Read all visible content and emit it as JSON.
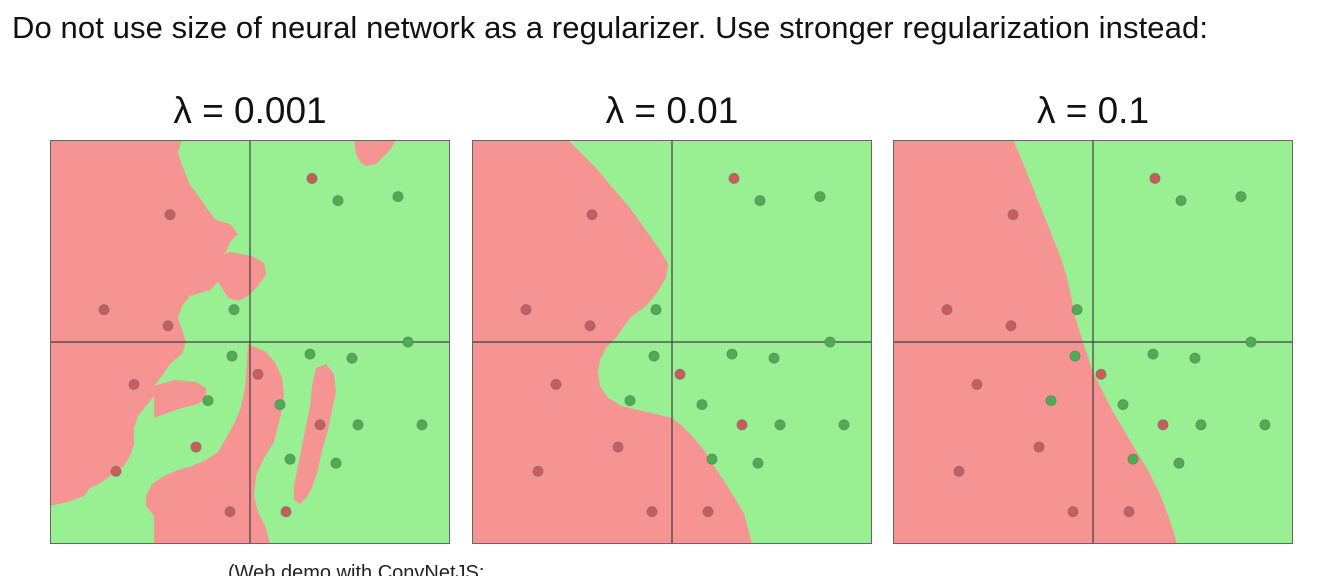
{
  "headline": "Do not use size of neural network as a regularizer. Use stronger regularization instead:",
  "footnote": "(Web demo with ConvNetJS:",
  "colors": {
    "red_region": "#f59493",
    "green_region": "#98f093",
    "red_point": "#cf5a5a",
    "green_point": "#49b14b",
    "axis": "#3f3f3f",
    "frame": "#666666"
  },
  "panels": [
    {
      "title": "λ = 0.001",
      "decision_boundary": "overfit",
      "points": [
        {
          "x": 0.31,
          "y": 0.81,
          "label": "red"
        },
        {
          "x": 0.44,
          "y": 0.7,
          "label": "green"
        },
        {
          "x": 0.74,
          "y": 0.72,
          "label": "green"
        },
        {
          "x": -0.73,
          "y": 0.16,
          "label": "red"
        },
        {
          "x": -0.41,
          "y": 0.08,
          "label": "red"
        },
        {
          "x": -0.08,
          "y": 0.16,
          "label": "green"
        },
        {
          "x": -0.58,
          "y": -0.21,
          "label": "red"
        },
        {
          "x": -0.09,
          "y": -0.07,
          "label": "green"
        },
        {
          "x": 0.04,
          "y": -0.16,
          "label": "red"
        },
        {
          "x": 0.3,
          "y": -0.06,
          "label": "green"
        },
        {
          "x": 0.51,
          "y": -0.08,
          "label": "green"
        },
        {
          "x": 0.79,
          "y": 0.0,
          "label": "green"
        },
        {
          "x": -0.21,
          "y": -0.29,
          "label": "green"
        },
        {
          "x": 0.15,
          "y": -0.31,
          "label": "green"
        },
        {
          "x": 0.35,
          "y": -0.41,
          "label": "red"
        },
        {
          "x": 0.54,
          "y": -0.41,
          "label": "green"
        },
        {
          "x": 0.86,
          "y": -0.41,
          "label": "green"
        },
        {
          "x": -0.27,
          "y": -0.52,
          "label": "red"
        },
        {
          "x": 0.2,
          "y": -0.58,
          "label": "green"
        },
        {
          "x": 0.43,
          "y": -0.6,
          "label": "green"
        },
        {
          "x": -0.67,
          "y": -0.64,
          "label": "red"
        },
        {
          "x": -0.1,
          "y": -0.84,
          "label": "red"
        },
        {
          "x": 0.18,
          "y": -0.84,
          "label": "red"
        },
        {
          "x": -0.4,
          "y": 0.63,
          "label": "red"
        }
      ]
    },
    {
      "title": "λ = 0.01",
      "decision_boundary": "moderate",
      "points": [
        {
          "x": 0.31,
          "y": 0.81,
          "label": "red"
        },
        {
          "x": 0.44,
          "y": 0.7,
          "label": "green"
        },
        {
          "x": 0.74,
          "y": 0.72,
          "label": "green"
        },
        {
          "x": -0.73,
          "y": 0.16,
          "label": "red"
        },
        {
          "x": -0.41,
          "y": 0.08,
          "label": "red"
        },
        {
          "x": -0.08,
          "y": 0.16,
          "label": "green"
        },
        {
          "x": -0.58,
          "y": -0.21,
          "label": "red"
        },
        {
          "x": -0.09,
          "y": -0.07,
          "label": "green"
        },
        {
          "x": 0.04,
          "y": -0.16,
          "label": "red"
        },
        {
          "x": 0.3,
          "y": -0.06,
          "label": "green"
        },
        {
          "x": 0.51,
          "y": -0.08,
          "label": "green"
        },
        {
          "x": 0.79,
          "y": 0.0,
          "label": "green"
        },
        {
          "x": -0.21,
          "y": -0.29,
          "label": "green"
        },
        {
          "x": 0.15,
          "y": -0.31,
          "label": "green"
        },
        {
          "x": 0.35,
          "y": -0.41,
          "label": "red"
        },
        {
          "x": 0.54,
          "y": -0.41,
          "label": "green"
        },
        {
          "x": 0.86,
          "y": -0.41,
          "label": "green"
        },
        {
          "x": -0.27,
          "y": -0.52,
          "label": "red"
        },
        {
          "x": 0.2,
          "y": -0.58,
          "label": "green"
        },
        {
          "x": 0.43,
          "y": -0.6,
          "label": "green"
        },
        {
          "x": -0.67,
          "y": -0.64,
          "label": "red"
        },
        {
          "x": -0.1,
          "y": -0.84,
          "label": "red"
        },
        {
          "x": 0.18,
          "y": -0.84,
          "label": "red"
        },
        {
          "x": -0.4,
          "y": 0.63,
          "label": "red"
        }
      ]
    },
    {
      "title": "λ = 0.1",
      "decision_boundary": "smooth",
      "points": [
        {
          "x": 0.31,
          "y": 0.81,
          "label": "red"
        },
        {
          "x": 0.44,
          "y": 0.7,
          "label": "green"
        },
        {
          "x": 0.74,
          "y": 0.72,
          "label": "green"
        },
        {
          "x": -0.73,
          "y": 0.16,
          "label": "red"
        },
        {
          "x": -0.41,
          "y": 0.08,
          "label": "red"
        },
        {
          "x": -0.08,
          "y": 0.16,
          "label": "green"
        },
        {
          "x": -0.58,
          "y": -0.21,
          "label": "red"
        },
        {
          "x": -0.09,
          "y": -0.07,
          "label": "green"
        },
        {
          "x": 0.04,
          "y": -0.16,
          "label": "red"
        },
        {
          "x": 0.3,
          "y": -0.06,
          "label": "green"
        },
        {
          "x": 0.51,
          "y": -0.08,
          "label": "green"
        },
        {
          "x": 0.79,
          "y": 0.0,
          "label": "green"
        },
        {
          "x": -0.21,
          "y": -0.29,
          "label": "green"
        },
        {
          "x": 0.15,
          "y": -0.31,
          "label": "green"
        },
        {
          "x": 0.35,
          "y": -0.41,
          "label": "red"
        },
        {
          "x": 0.54,
          "y": -0.41,
          "label": "green"
        },
        {
          "x": 0.86,
          "y": -0.41,
          "label": "green"
        },
        {
          "x": -0.27,
          "y": -0.52,
          "label": "red"
        },
        {
          "x": 0.2,
          "y": -0.58,
          "label": "green"
        },
        {
          "x": 0.43,
          "y": -0.6,
          "label": "green"
        },
        {
          "x": -0.67,
          "y": -0.64,
          "label": "red"
        },
        {
          "x": -0.1,
          "y": -0.84,
          "label": "red"
        },
        {
          "x": 0.18,
          "y": -0.84,
          "label": "red"
        },
        {
          "x": -0.4,
          "y": 0.63,
          "label": "red"
        }
      ]
    }
  ]
}
